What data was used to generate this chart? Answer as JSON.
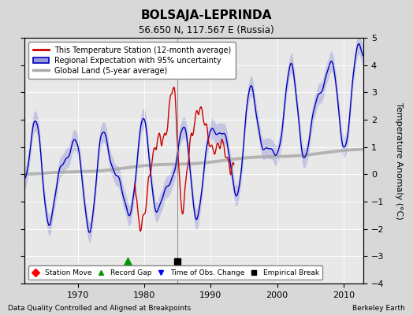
{
  "title": "BOLSAJA-LEPRINDA",
  "subtitle": "56.650 N, 117.567 E (Russia)",
  "ylabel": "Temperature Anomaly (°C)",
  "xlabel_left": "Data Quality Controlled and Aligned at Breakpoints",
  "xlabel_right": "Berkeley Earth",
  "ylim": [
    -4,
    5
  ],
  "xlim": [
    1962,
    2013
  ],
  "xticks": [
    1970,
    1980,
    1990,
    2000,
    2010
  ],
  "yticks": [
    -4,
    -3,
    -2,
    -1,
    0,
    1,
    2,
    3,
    4,
    5
  ],
  "legend_entries": [
    "This Temperature Station (12-month average)",
    "Regional Expectation with 95% uncertainty",
    "Global Land (5-year average)"
  ],
  "record_gap_x": 1977.5,
  "time_obs_change_x": 1985.0,
  "empirical_break_x": 1985.0,
  "vertical_line_x": 1985.0,
  "bg_color": "#d8d8d8",
  "plot_bg_color": "#e8e8e8",
  "red_color": "#cc0000",
  "blue_color": "#0000bb",
  "blue_fill_color": "#9999dd",
  "gray_color": "#aaaaaa",
  "marker_y": -3.2
}
